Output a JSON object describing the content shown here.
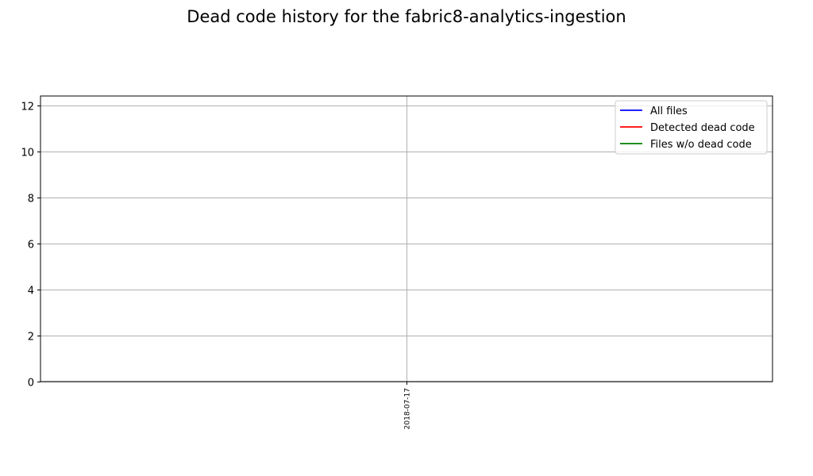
{
  "chart_data": {
    "type": "line",
    "title": "Dead code history for the fabric8-analytics-ingestion",
    "xlabel": "",
    "ylabel": "",
    "x": [
      "2018-07-17"
    ],
    "ylim": [
      0,
      12.4
    ],
    "yticks": [
      0,
      2,
      4,
      6,
      8,
      10,
      12
    ],
    "grid": true,
    "legend_position": "top-right",
    "series": [
      {
        "name": "All files",
        "color": "#0000ff",
        "values": [
          null
        ]
      },
      {
        "name": "Detected dead code",
        "color": "#ff0000",
        "values": [
          null
        ]
      },
      {
        "name": "Files w/o dead code",
        "color": "#008000",
        "values": [
          null
        ]
      }
    ]
  }
}
